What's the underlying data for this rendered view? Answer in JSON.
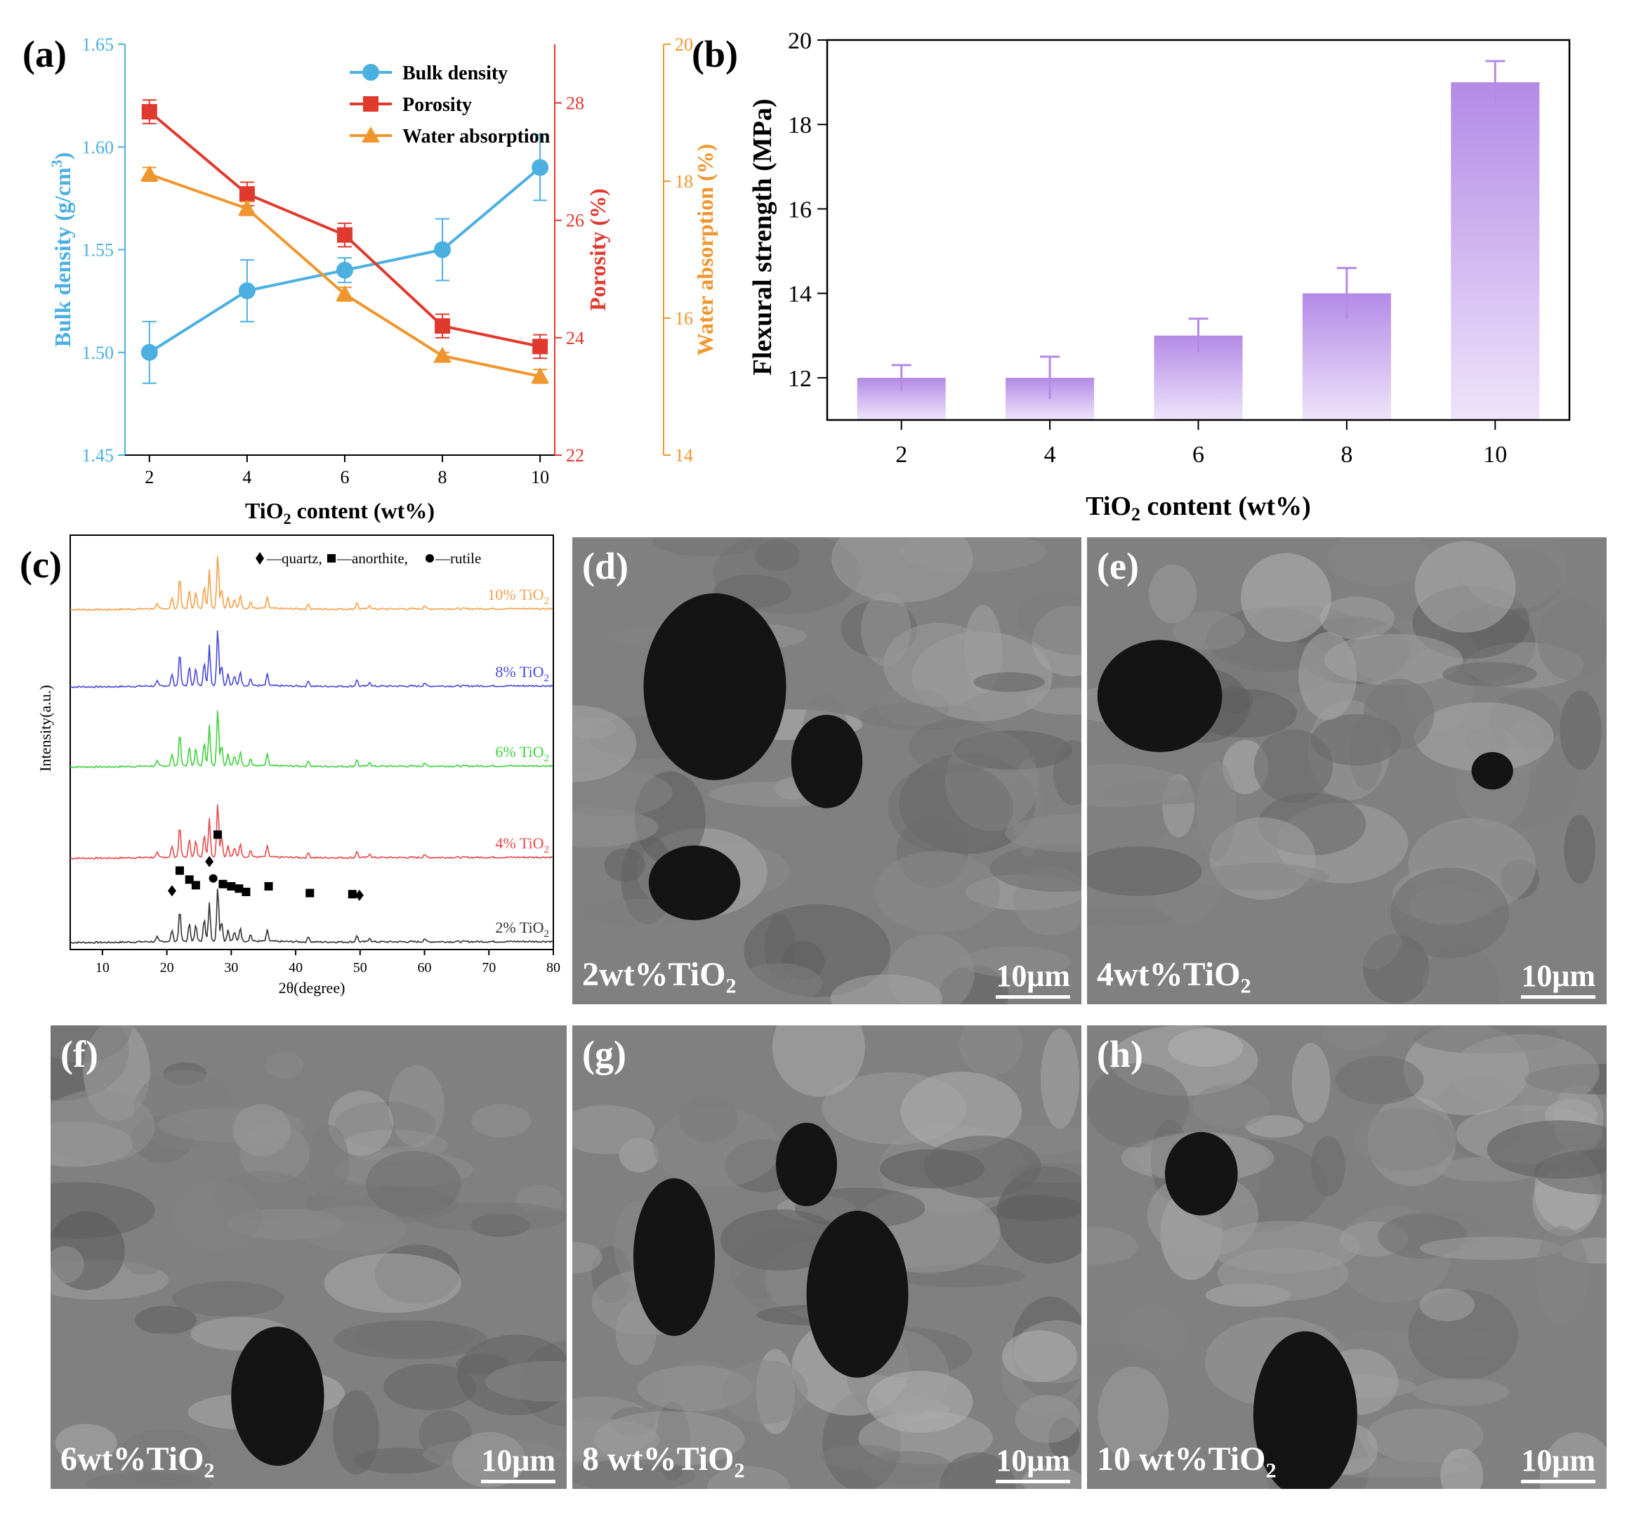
{
  "panel_labels": {
    "a": "(a)",
    "b": "(b)",
    "c": "(c)",
    "d": "(d)",
    "e": "(e)",
    "f": "(f)",
    "g": "(g)",
    "h": "(h)"
  },
  "colors": {
    "bulk": "#4bb0e0",
    "porosity": "#e03a2f",
    "water": "#f0962e",
    "bar": "#b48ae6",
    "xrd": [
      "#333333",
      "#e84a4a",
      "#3fd13f",
      "#4848d8",
      "#f5a04a"
    ]
  },
  "chart_data": [
    {
      "type": "line",
      "panel": "a",
      "x": [
        2,
        4,
        6,
        8,
        10
      ],
      "xlabel_pre": "TiO",
      "xlabel_sub": "2",
      "xlabel_post": " content (wt%)",
      "xticks": [
        "2",
        "4",
        "6",
        "8",
        "10"
      ],
      "legend_position": "top-right",
      "series": [
        {
          "name": "Bulk density",
          "axis": "left",
          "marker": "circle",
          "values": [
            1.5,
            1.53,
            1.54,
            1.55,
            1.59
          ],
          "errors": [
            0.015,
            0.015,
            0.006,
            0.015,
            0.016
          ]
        },
        {
          "name": "Porosity",
          "axis": "right1",
          "marker": "square",
          "values": [
            27.85,
            26.45,
            25.75,
            24.2,
            23.85
          ],
          "errors": [
            0.2,
            0.2,
            0.2,
            0.2,
            0.2
          ]
        },
        {
          "name": "Water absorption",
          "axis": "right2",
          "marker": "triangle",
          "values": [
            18.1,
            17.6,
            16.35,
            15.45,
            15.15
          ],
          "errors": [
            0.1,
            0.1,
            0.1,
            0.05,
            0.1
          ]
        }
      ],
      "axes": {
        "left": {
          "label_pre": "Bulk density (g/cm",
          "label_sup": "3",
          "label_post": ")",
          "ylim": [
            1.45,
            1.65
          ],
          "ticks": [
            "1.45",
            "1.50",
            "1.55",
            "1.60",
            "1.65"
          ]
        },
        "right1": {
          "label": "Porosity (%)",
          "ylim": [
            22,
            29
          ],
          "ticks": [
            "22",
            "24",
            "26",
            "28"
          ]
        },
        "right2": {
          "label": "Water absorption (%)",
          "ylim": [
            14,
            20
          ],
          "ticks": [
            "14",
            "16",
            "18",
            "20"
          ]
        }
      }
    },
    {
      "type": "bar",
      "panel": "b",
      "categories": [
        "2",
        "4",
        "6",
        "8",
        "10"
      ],
      "values": [
        12.0,
        12.0,
        13.0,
        14.0,
        19.0
      ],
      "errors": [
        0.3,
        0.5,
        0.4,
        0.6,
        0.5
      ],
      "xlabel_pre": "TiO",
      "xlabel_sub": "2",
      "xlabel_post": " content (wt%)",
      "ylabel": "Flexural strength (MPa)",
      "ylim": [
        11,
        20
      ],
      "yticks": [
        "12",
        "14",
        "16",
        "18",
        "20"
      ]
    },
    {
      "type": "line",
      "panel": "c",
      "xlabel": "2θ(degree)",
      "ylabel": "Intensity(a.u.)",
      "xlim": [
        5,
        80
      ],
      "xticks": [
        "10",
        "20",
        "30",
        "40",
        "50",
        "60",
        "70",
        "80"
      ],
      "grid": false,
      "legend_text": {
        "quartz": "—quartz,",
        "anorthite": "—anorthite,",
        "rutile": "—rutile"
      },
      "peaks": [
        {
          "x": 18.5,
          "h": 4
        },
        {
          "x": 20.8,
          "h": 10
        },
        {
          "x": 22.0,
          "h": 28
        },
        {
          "x": 23.5,
          "h": 16
        },
        {
          "x": 24.5,
          "h": 14
        },
        {
          "x": 25.8,
          "h": 20
        },
        {
          "x": 26.6,
          "h": 34
        },
        {
          "x": 27.9,
          "h": 48
        },
        {
          "x": 28.5,
          "h": 18
        },
        {
          "x": 29.5,
          "h": 10
        },
        {
          "x": 30.5,
          "h": 8
        },
        {
          "x": 31.4,
          "h": 12
        },
        {
          "x": 33.0,
          "h": 6
        },
        {
          "x": 35.6,
          "h": 10
        },
        {
          "x": 42.0,
          "h": 5
        },
        {
          "x": 49.5,
          "h": 6
        },
        {
          "x": 51.5,
          "h": 4
        },
        {
          "x": 60.0,
          "h": 3
        }
      ],
      "series": [
        {
          "name_pre": "2% TiO",
          "name_sub": "2"
        },
        {
          "name_pre": "4% TiO",
          "name_sub": "2"
        },
        {
          "name_pre": "6% TiO",
          "name_sub": "2"
        },
        {
          "name_pre": "8% TiO",
          "name_sub": "2"
        },
        {
          "name_pre": "10% TiO",
          "name_sub": "2"
        }
      ],
      "markers": [
        {
          "x": 20.8,
          "y": 46,
          "kind": "quartz"
        },
        {
          "x": 22.0,
          "y": 64,
          "kind": "anorthite"
        },
        {
          "x": 23.5,
          "y": 56,
          "kind": "anorthite"
        },
        {
          "x": 24.5,
          "y": 51,
          "kind": "anorthite"
        },
        {
          "x": 26.6,
          "y": 72,
          "kind": "quartz"
        },
        {
          "x": 27.9,
          "y": 96,
          "kind": "anorthite"
        },
        {
          "x": 27.2,
          "y": 57,
          "kind": "rutile"
        },
        {
          "x": 28.7,
          "y": 52,
          "kind": "anorthite"
        },
        {
          "x": 30.0,
          "y": 50,
          "kind": "anorthite"
        },
        {
          "x": 31.2,
          "y": 48,
          "kind": "anorthite"
        },
        {
          "x": 32.3,
          "y": 45,
          "kind": "anorthite"
        },
        {
          "x": 35.8,
          "y": 50,
          "kind": "anorthite"
        },
        {
          "x": 42.2,
          "y": 44,
          "kind": "anorthite"
        },
        {
          "x": 48.8,
          "y": 43,
          "kind": "anorthite"
        },
        {
          "x": 49.9,
          "y": 42,
          "kind": "quartz"
        }
      ]
    }
  ],
  "sem_panels": [
    {
      "letter": "(d)",
      "label_pre": "2wt%TiO",
      "label_sub": "2",
      "scale": "10μm"
    },
    {
      "letter": "(e)",
      "label_pre": "4wt%TiO",
      "label_sub": "2",
      "scale": "10μm"
    },
    {
      "letter": "(f)",
      "label_pre": "6wt%TiO",
      "label_sub": "2",
      "scale": "10μm"
    },
    {
      "letter": "(g)",
      "label_pre": "8 wt%TiO",
      "label_sub": "2",
      "scale": "10μm"
    },
    {
      "letter": "(h)",
      "label_pre": "10 wt%TiO",
      "label_sub": "2",
      "scale": "10μm"
    }
  ]
}
